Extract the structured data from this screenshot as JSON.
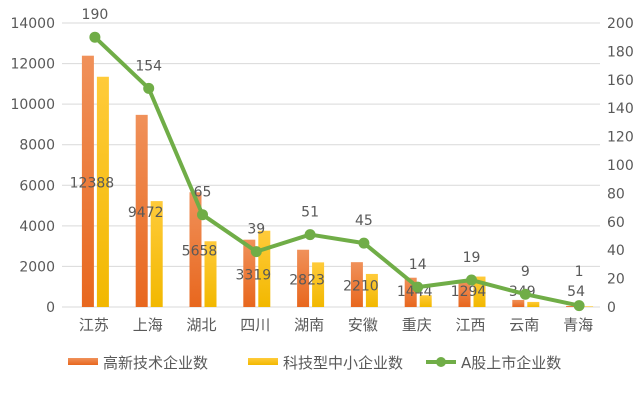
{
  "chart_data": {
    "type": "bar+line",
    "categories": [
      "江苏",
      "上海",
      "湖北",
      "四川",
      "湖南",
      "安徽",
      "重庆",
      "江西",
      "云南",
      "青海"
    ],
    "series": [
      {
        "name": "高新技术企业数",
        "type": "bar",
        "axis": "left",
        "color": "#ED7D31",
        "values": [
          12388,
          9472,
          5658,
          3319,
          2823,
          2210,
          1444,
          1294,
          349,
          54
        ],
        "labels": [
          "12388",
          "9472",
          "5658",
          "3319",
          "2823",
          "2210",
          "1444",
          "1294",
          "349",
          "54"
        ]
      },
      {
        "name": "科技型中小企业数",
        "type": "bar",
        "axis": "left",
        "color": "#FFC000",
        "values": [
          11350,
          5220,
          3240,
          3760,
          2200,
          1630,
          580,
          1500,
          250,
          30
        ]
      },
      {
        "name": "A股上市企业数",
        "type": "line",
        "axis": "right",
        "color": "#70AD47",
        "values": [
          190,
          154,
          65,
          39,
          51,
          45,
          14,
          19,
          9,
          1
        ],
        "labels": [
          "190",
          "154",
          "65",
          "39",
          "51",
          "45",
          "14",
          "19",
          "9",
          "1"
        ]
      }
    ],
    "left_axis": {
      "range": [
        0,
        14000
      ],
      "ticks": [
        "0",
        "2000",
        "4000",
        "6000",
        "8000",
        "10000",
        "12000",
        "14000"
      ]
    },
    "right_axis": {
      "range": [
        0,
        200
      ],
      "ticks": [
        "0",
        "20",
        "40",
        "60",
        "80",
        "100",
        "120",
        "140",
        "160",
        "180",
        "200"
      ]
    },
    "grid": true,
    "legend_position": "bottom"
  }
}
